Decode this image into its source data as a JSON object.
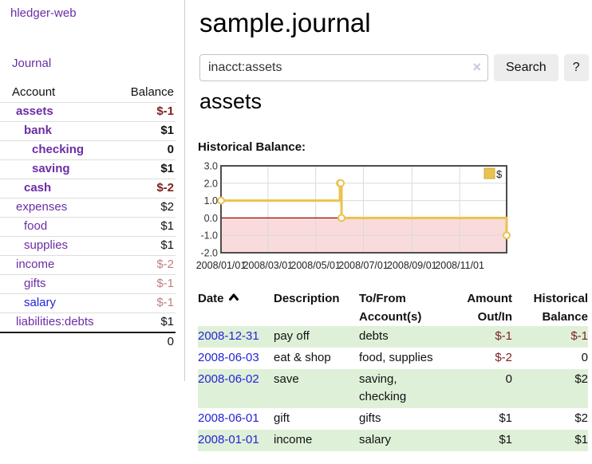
{
  "sidebar": {
    "brand": "hledger-web",
    "journal_link": "Journal",
    "accounts_table": {
      "headers": {
        "account": "Account",
        "balance": "Balance"
      },
      "rows": [
        {
          "account": "assets",
          "balance": "$-1"
        },
        {
          "account": "bank",
          "balance": "$1"
        },
        {
          "account": "checking",
          "balance": "0"
        },
        {
          "account": "saving",
          "balance": "$1"
        },
        {
          "account": "cash",
          "balance": "$-2"
        },
        {
          "account": "expenses",
          "balance": "$2"
        },
        {
          "account": "food",
          "balance": "$1"
        },
        {
          "account": "supplies",
          "balance": "$1"
        },
        {
          "account": "income",
          "balance": "$-2"
        },
        {
          "account": "gifts",
          "balance": "$-1"
        },
        {
          "account": "salary",
          "balance": "$-1"
        },
        {
          "account": "liabilities:debts",
          "balance": "$1"
        }
      ],
      "total": "0"
    }
  },
  "main": {
    "title": "sample.journal",
    "search": {
      "value": "inacct:assets",
      "clear_icon": "×",
      "search_button": "Search",
      "help_button": "?"
    },
    "account_heading": "assets",
    "chart_heading": "Historical Balance:",
    "register_table": {
      "headers": {
        "date": "Date",
        "description": "Description",
        "accounts": [
          "To/From",
          "Account(s)"
        ],
        "amount": [
          "Amount",
          "Out/In"
        ],
        "balance": [
          "Historical",
          "Balance"
        ]
      },
      "rows": [
        {
          "date": "2008-12-31",
          "description": "pay off",
          "accounts": "debts",
          "amount": "$-1",
          "balance": "$-1"
        },
        {
          "date": "2008-06-03",
          "description": "eat & shop",
          "accounts": "food, supplies",
          "amount": "$-2",
          "balance": "0"
        },
        {
          "date": "2008-06-02",
          "description": "save",
          "accounts": "saving, checking",
          "amount": "0",
          "balance": "$2"
        },
        {
          "date": "2008-06-01",
          "description": "gift",
          "accounts": "gifts",
          "amount": "$1",
          "balance": "$2"
        },
        {
          "date": "2008-01-01",
          "description": "income",
          "accounts": "salary",
          "amount": "$1",
          "balance": "$1"
        }
      ]
    }
  },
  "chart_data": {
    "type": "line",
    "title": "Historical Balance:",
    "legend": "$",
    "legend_position": "top-right",
    "step": true,
    "series": [
      {
        "name": "$",
        "points": [
          [
            "2008-01-01",
            1
          ],
          [
            "2008-06-01",
            2
          ],
          [
            "2008-06-02",
            2
          ],
          [
            "2008-06-03",
            0
          ],
          [
            "2008-12-31",
            -1
          ]
        ]
      }
    ],
    "xlim": [
      "2008-01-01",
      "2008-12-31"
    ],
    "ylim": [
      -2,
      3
    ],
    "yticks": [
      3,
      2,
      1,
      0,
      -1,
      -2
    ],
    "xtick_labels": [
      "2008/01/01",
      "2008/03/01",
      "2008/05/01",
      "2008/07/01",
      "2008/09/01",
      "2008/11/01"
    ],
    "grid": true
  },
  "colors": {
    "link_purple": "#6b2da6",
    "link_blue": "#2424d6",
    "negative_strong": "#7d1f1f",
    "negative_light": "#c07f7f",
    "row_stripe_green": "#dff0d8",
    "chart_line_gold": "#e9c34f",
    "chart_negative_fill": "#fadbdb",
    "chart_zero_line": "#a00000",
    "chart_border": "#4d4d4d",
    "chart_gridline": "#d9d9d9"
  }
}
